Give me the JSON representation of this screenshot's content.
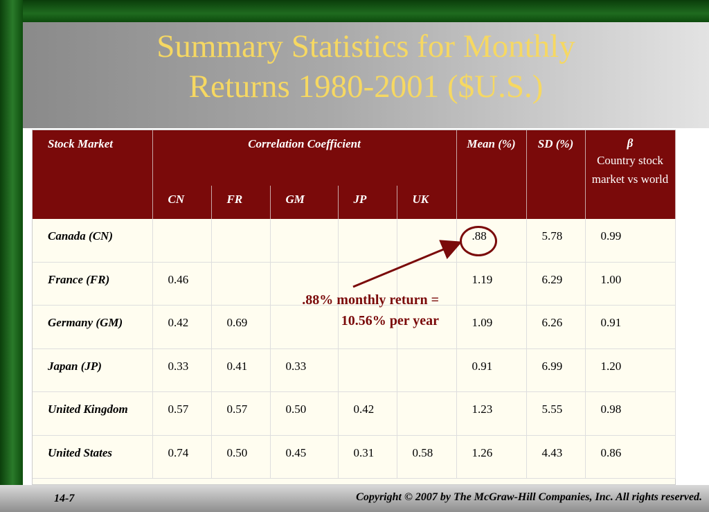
{
  "title": {
    "line1": "Summary Statistics for Monthly",
    "line2": "Returns 1980-2001 ($U.S.)"
  },
  "table": {
    "header": {
      "stock_market": "Stock Market",
      "correlation": "Correlation Coefficient",
      "mean": "Mean (%)",
      "sd": "SD (%)",
      "beta_symbol": "β",
      "beta_label": "Country stock market vs world",
      "sub": [
        "CN",
        "FR",
        "GM",
        "JP",
        "UK"
      ]
    },
    "rows": [
      {
        "market": "Canada (CN)",
        "cn": "",
        "fr": "",
        "gm": "",
        "jp": "",
        "uk": "",
        "mean": ".88",
        "sd": "5.78",
        "beta": "0.99"
      },
      {
        "market": "France (FR)",
        "cn": "0.46",
        "fr": "",
        "gm": "",
        "jp": "",
        "uk": "",
        "mean": "1.19",
        "sd": "6.29",
        "beta": "1.00"
      },
      {
        "market": "Germany (GM)",
        "cn": "0.42",
        "fr": "0.69",
        "gm": "",
        "jp": "",
        "uk": "",
        "mean": "1.09",
        "sd": "6.26",
        "beta": "0.91"
      },
      {
        "market": "Japan (JP)",
        "cn": "0.33",
        "fr": "0.41",
        "gm": "0.33",
        "jp": "",
        "uk": "",
        "mean": "0.91",
        "sd": "6.99",
        "beta": "1.20"
      },
      {
        "market": "United Kingdom",
        "cn": "0.57",
        "fr": "0.57",
        "gm": "0.50",
        "jp": "0.42",
        "uk": "",
        "mean": "1.23",
        "sd": "5.55",
        "beta": "0.98"
      },
      {
        "market": "United States",
        "cn": "0.74",
        "fr": "0.50",
        "gm": "0.45",
        "jp": "0.31",
        "uk": "0.58",
        "mean": "1.26",
        "sd": "4.43",
        "beta": "0.86"
      }
    ]
  },
  "annotation": {
    "line1": ".88% monthly return =",
    "line2": "10.56% per year"
  },
  "footer": {
    "slide_number": "14-7",
    "copyright": "Copyright © 2007 by The McGraw-Hill Companies, Inc.  All rights reserved."
  },
  "colors": {
    "title": "#f6d862",
    "header_bg": "#7a0a0a",
    "annotation": "#7a0a0a",
    "frame": "#1f6b1f"
  }
}
